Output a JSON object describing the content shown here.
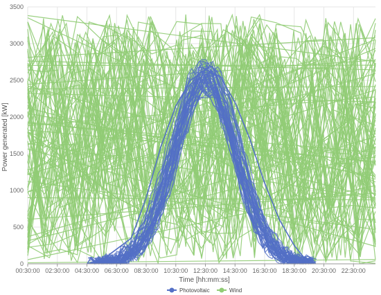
{
  "chart_data": {
    "type": "line",
    "title": "",
    "xlabel": "Time [hh:mm:ss]",
    "ylabel": "Power generated [kW]",
    "ylim": [
      0,
      3500
    ],
    "xlim": [
      "00:30:00",
      "23:59:00"
    ],
    "y_ticks": [
      "0",
      "500",
      "1000",
      "1500",
      "2000",
      "2500",
      "3000",
      "3500"
    ],
    "x_ticks": [
      "00:30:00",
      "02:30:00",
      "04:30:00",
      "06:30:00",
      "08:30:00",
      "10:30:00",
      "12:30:00",
      "14:30:00",
      "16:30:00",
      "18:30:00",
      "20:30:00",
      "22:30:00"
    ],
    "grid": true,
    "legend_position": "bottom-center",
    "series": [
      {
        "name": "Photovoltaic",
        "color": "#5470c6",
        "x": [
          "04:30:00",
          "05:30:00",
          "06:30:00",
          "07:30:00",
          "08:30:00",
          "09:30:00",
          "10:30:00",
          "11:30:00",
          "12:30:00",
          "13:30:00",
          "14:30:00",
          "15:30:00",
          "16:30:00",
          "17:30:00",
          "18:30:00",
          "19:30:00"
        ],
        "values": [
          0,
          50,
          200,
          350,
          900,
          1600,
          2150,
          2500,
          2650,
          2550,
          2200,
          1700,
          1100,
          600,
          250,
          0
        ]
      },
      {
        "name": "Wind",
        "color": "#91cc75",
        "x": [
          "00:30:00",
          "02:30:00",
          "04:30:00",
          "06:30:00",
          "08:30:00",
          "10:30:00",
          "12:30:00",
          "14:30:00",
          "16:30:00",
          "18:30:00",
          "20:30:00",
          "22:30:00"
        ],
        "values": [
          1800,
          1500,
          1200,
          900,
          700,
          1000,
          1500,
          1300,
          900,
          1100,
          1700,
          2000
        ]
      }
    ]
  }
}
